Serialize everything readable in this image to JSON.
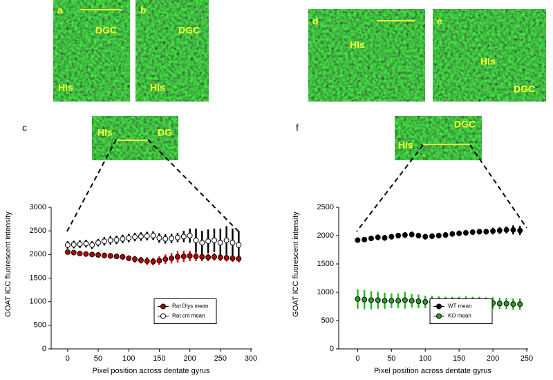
{
  "panels": [
    {
      "letter": "a",
      "labels": [
        "DGC",
        "HIs"
      ]
    },
    {
      "letter": "b",
      "labels": [
        "DGC",
        "HIs"
      ]
    },
    {
      "letter": "d",
      "labels": [
        "HIs"
      ]
    },
    {
      "letter": "e",
      "labels": [
        "HIs",
        "DGC"
      ]
    },
    {
      "letter": "c",
      "labels": [
        "HIs",
        "DG"
      ]
    },
    {
      "letter": "f",
      "labels": [
        "DGC",
        "HIs"
      ]
    }
  ],
  "chart_data": [
    {
      "type": "scatter",
      "x_label": "Pixel position across dentate gyrus",
      "y_label": "GOAT ICC fluorescent intensity",
      "xlim": [
        -27,
        300
      ],
      "xticks": [
        0,
        50,
        100,
        150,
        200,
        250,
        300
      ],
      "ylim": [
        0,
        3000
      ],
      "yticks": [
        0,
        500,
        1000,
        1500,
        2000,
        2500,
        3000
      ],
      "legend": "center right",
      "x": [
        0,
        10,
        20,
        30,
        40,
        50,
        60,
        70,
        80,
        90,
        100,
        110,
        120,
        130,
        140,
        150,
        160,
        170,
        180,
        190,
        200,
        210,
        220,
        230,
        240,
        250,
        260,
        270,
        280
      ],
      "series": [
        {
          "name": "Rat Dlys mean",
          "color": "#ff0000",
          "marker_fill": "#b00000",
          "values": [
            2050,
            2040,
            2020,
            2010,
            2000,
            1990,
            1980,
            1970,
            1960,
            1950,
            1920,
            1900,
            1880,
            1860,
            1850,
            1870,
            1900,
            1920,
            1950,
            1960,
            1970,
            1960,
            1950,
            1940,
            1950,
            1940,
            1930,
            1920,
            1910
          ],
          "errors": [
            50,
            50,
            50,
            50,
            50,
            50,
            60,
            60,
            60,
            60,
            60,
            70,
            70,
            80,
            80,
            90,
            100,
            110,
            120,
            120,
            110,
            100,
            90,
            80,
            80,
            80,
            80,
            80,
            80
          ]
        },
        {
          "name": "Rat cnt mean",
          "color": "#000000",
          "marker_fill": "#ffffff",
          "values": [
            2200,
            2210,
            2220,
            2230,
            2200,
            2250,
            2280,
            2300,
            2310,
            2330,
            2350,
            2370,
            2380,
            2390,
            2400,
            2350,
            2330,
            2340,
            2360,
            2380,
            2400,
            2300,
            2250,
            2280,
            2300,
            2250,
            2300,
            2250,
            2200
          ],
          "errors": [
            80,
            80,
            80,
            80,
            80,
            80,
            90,
            90,
            90,
            90,
            90,
            90,
            90,
            90,
            90,
            100,
            100,
            100,
            100,
            120,
            150,
            250,
            250,
            250,
            250,
            300,
            300,
            300,
            300
          ]
        }
      ]
    },
    {
      "type": "scatter",
      "x_label": "Pixel position across dentate gyrus",
      "y_label": "GOAT ICC fluorescent intensity",
      "xlim": [
        -28,
        250
      ],
      "xticks": [
        0,
        50,
        100,
        150,
        200,
        250
      ],
      "ylim": [
        0,
        2500
      ],
      "yticks": [
        0,
        500,
        1000,
        1500,
        2000,
        2500
      ],
      "legend": "center right",
      "x": [
        0,
        10,
        20,
        30,
        40,
        50,
        60,
        70,
        80,
        90,
        100,
        110,
        120,
        130,
        140,
        150,
        160,
        170,
        180,
        190,
        200,
        210,
        220,
        230,
        240
      ],
      "series": [
        {
          "name": "WT mean",
          "color": "#000000",
          "marker_fill": "#000000",
          "values": [
            1920,
            1930,
            1950,
            1970,
            1960,
            1980,
            2000,
            2010,
            2020,
            2000,
            1980,
            1990,
            2000,
            2010,
            2030,
            2040,
            2050,
            2060,
            2070,
            2070,
            2080,
            2090,
            2100,
            2100,
            2090
          ],
          "errors": [
            40,
            40,
            40,
            50,
            50,
            50,
            50,
            50,
            50,
            50,
            50,
            50,
            50,
            50,
            50,
            50,
            50,
            50,
            50,
            50,
            60,
            60,
            60,
            80,
            80
          ]
        },
        {
          "name": "KO mean",
          "color": "#22bb22",
          "marker_fill": "#339933",
          "values": [
            880,
            870,
            860,
            860,
            850,
            850,
            850,
            860,
            850,
            840,
            830,
            830,
            830,
            820,
            820,
            820,
            830,
            820,
            820,
            810,
            810,
            800,
            800,
            790,
            790
          ],
          "errors": [
            170,
            170,
            160,
            150,
            140,
            130,
            130,
            150,
            120,
            120,
            110,
            110,
            100,
            100,
            100,
            100,
            100,
            100,
            100,
            100,
            100,
            100,
            100,
            100,
            100
          ]
        }
      ]
    }
  ]
}
